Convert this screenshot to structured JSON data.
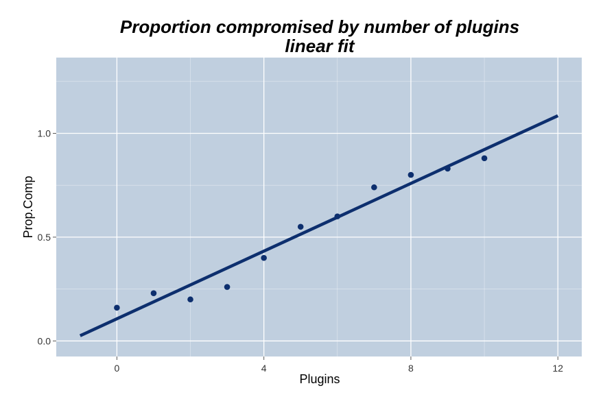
{
  "chart_data": {
    "type": "scatter",
    "title": "Proportion compromised by number of plugins",
    "subtitle": "linear fit",
    "xlabel": "Plugins",
    "ylabel": "Prop.Comp",
    "xlim": [
      -1.65,
      12.65
    ],
    "ylim": [
      -0.075,
      1.365
    ],
    "x_ticks": [
      0,
      4,
      8,
      12
    ],
    "x_tick_labels": [
      "0",
      "4",
      "8",
      "12"
    ],
    "y_ticks": [
      0.0,
      0.5,
      1.0
    ],
    "y_tick_labels": [
      "0.0",
      "0.5",
      "1.0"
    ],
    "grid": true,
    "panel_background": "#c0cfdf",
    "grid_color": "#ffffff",
    "series": [
      {
        "type": "scatter",
        "x": [
          0,
          1,
          2,
          3,
          4,
          5,
          6,
          7,
          8,
          9,
          10
        ],
        "y": [
          0.16,
          0.23,
          0.2,
          0.26,
          0.4,
          0.55,
          0.6,
          0.74,
          0.8,
          0.83,
          0.88
        ],
        "color": "#0d2f6e"
      },
      {
        "type": "line",
        "x": [
          -1,
          12
        ],
        "y": [
          0.025,
          1.085
        ],
        "color": "#0d2f6e"
      }
    ]
  }
}
